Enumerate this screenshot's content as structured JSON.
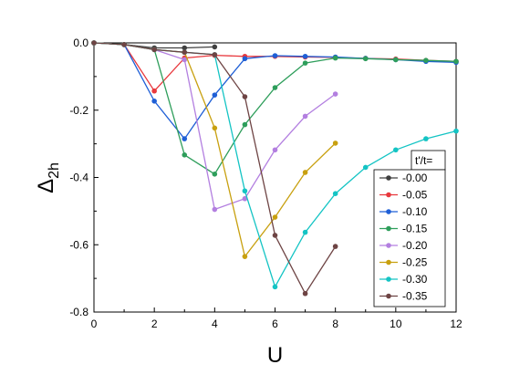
{
  "chart_data": {
    "type": "line",
    "xlabel": "U",
    "ylabel_main": "Δ",
    "ylabel_sub": "2h",
    "xlim": [
      0,
      12
    ],
    "ylim": [
      -0.8,
      0.0
    ],
    "x_ticks": [
      "0",
      "2",
      "4",
      "6",
      "8",
      "10",
      "12"
    ],
    "y_ticks": [
      "0.0",
      "-0.2",
      "-0.4",
      "-0.6",
      "-0.8"
    ],
    "grid": false,
    "legend_title": "t'/t=",
    "legend_position": "right",
    "series": [
      {
        "name": "-0.00",
        "color": "#404040",
        "x": [
          0,
          1,
          2,
          3,
          4
        ],
        "y": [
          0.0,
          -0.005,
          -0.015,
          -0.015,
          -0.012
        ]
      },
      {
        "name": "-0.05",
        "color": "#e8383d",
        "x": [
          0,
          1,
          2,
          3,
          4,
          5,
          6,
          7,
          8,
          9,
          10,
          11,
          12
        ],
        "y": [
          0.0,
          -0.005,
          -0.143,
          -0.045,
          -0.037,
          -0.04,
          -0.04,
          -0.042,
          -0.043,
          -0.046,
          -0.048,
          -0.052,
          -0.055
        ]
      },
      {
        "name": "-0.10",
        "color": "#1f5fd6",
        "x": [
          0,
          1,
          2,
          3,
          4,
          5,
          6,
          7,
          8,
          9,
          10,
          11,
          12
        ],
        "y": [
          0.0,
          -0.005,
          -0.173,
          -0.285,
          -0.155,
          -0.047,
          -0.038,
          -0.04,
          -0.042,
          -0.046,
          -0.05,
          -0.055,
          -0.058
        ]
      },
      {
        "name": "-0.15",
        "color": "#2e9e5b",
        "x": [
          0,
          1,
          2,
          3,
          4,
          5,
          6,
          7,
          8,
          9,
          10,
          11,
          12
        ],
        "y": [
          0.0,
          -0.005,
          -0.02,
          -0.333,
          -0.39,
          -0.243,
          -0.133,
          -0.06,
          -0.045,
          -0.047,
          -0.05,
          -0.052,
          -0.055
        ]
      },
      {
        "name": "-0.20",
        "color": "#b37fe0",
        "x": [
          0,
          1,
          2,
          3,
          4,
          5,
          6,
          7,
          8
        ],
        "y": [
          0.0,
          -0.005,
          -0.02,
          -0.05,
          -0.495,
          -0.463,
          -0.318,
          -0.218,
          -0.152
        ]
      },
      {
        "name": "-0.25",
        "color": "#c8a00f",
        "x": [
          0,
          1,
          2,
          3,
          4,
          5,
          6,
          7,
          8
        ],
        "y": [
          0.0,
          -0.005,
          -0.02,
          -0.028,
          -0.253,
          -0.635,
          -0.518,
          -0.385,
          -0.298
        ]
      },
      {
        "name": "-0.30",
        "color": "#14c4c4",
        "x": [
          0,
          1,
          2,
          3,
          4,
          5,
          6,
          7,
          8,
          9,
          10,
          11,
          12
        ],
        "y": [
          0.0,
          -0.005,
          -0.02,
          -0.028,
          -0.035,
          -0.44,
          -0.725,
          -0.563,
          -0.448,
          -0.37,
          -0.318,
          -0.285,
          -0.262
        ]
      },
      {
        "name": "-0.35",
        "color": "#6e4444",
        "x": [
          0,
          1,
          2,
          3,
          4,
          5,
          6,
          7,
          8
        ],
        "y": [
          0.0,
          -0.005,
          -0.02,
          -0.028,
          -0.035,
          -0.16,
          -0.572,
          -0.745,
          -0.605
        ]
      }
    ]
  }
}
